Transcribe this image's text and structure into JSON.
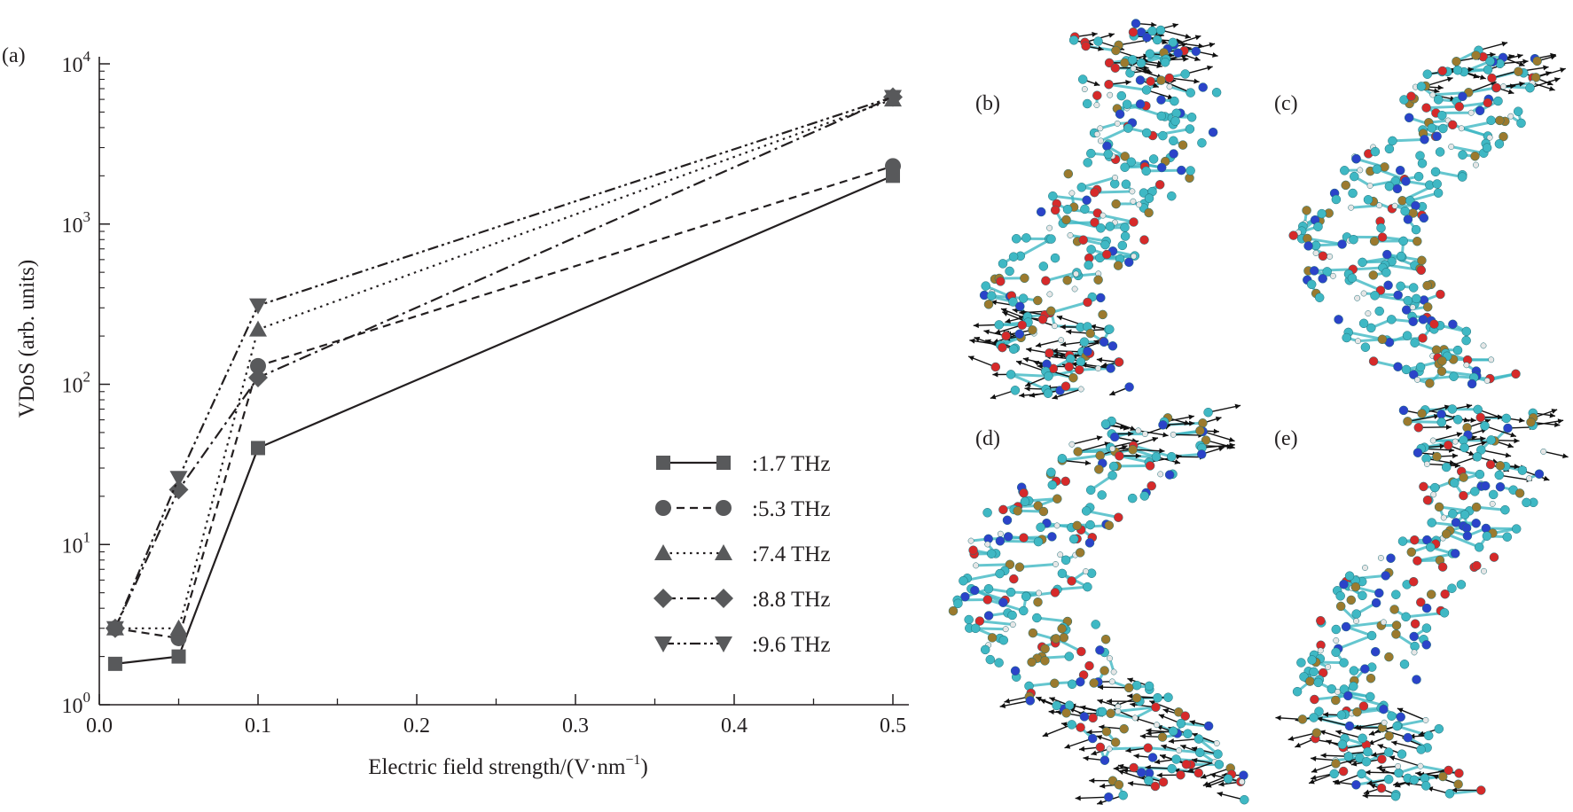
{
  "panel_labels": {
    "a": "(a)",
    "b": "(b)",
    "c": "(c)",
    "d": "(d)",
    "e": "(e)"
  },
  "chart_data": {
    "type": "line",
    "title": "",
    "xlabel": "Electric field strength/(V·nm",
    "xlabel_sup": "−1",
    "xlabel_end": ")",
    "ylabel": "VDoS (arb. units)",
    "x_scale": "linear-broken",
    "y_scale": "log",
    "xlim": [
      0.0,
      0.5
    ],
    "ylim": [
      1,
      10000
    ],
    "grid": false,
    "legend_position": "lower-right",
    "x_ticks": [
      "0.0",
      "0.1",
      "0.2",
      "0.3",
      "0.4",
      "0.5"
    ],
    "y_ticks": [
      {
        "base": "10",
        "exp": "0"
      },
      {
        "base": "10",
        "exp": "1"
      },
      {
        "base": "10",
        "exp": "2"
      },
      {
        "base": "10",
        "exp": "3"
      },
      {
        "base": "10",
        "exp": "4"
      }
    ],
    "x": [
      0.01,
      0.05,
      0.1,
      0.5
    ],
    "series": [
      {
        "name": ":1.7 THz",
        "marker": "square",
        "dash": "solid",
        "values": [
          1.8,
          2.0,
          40,
          2000
        ]
      },
      {
        "name": ":5.3 THz",
        "marker": "circle",
        "dash": "dashed",
        "values": [
          3.0,
          2.6,
          130,
          2300
        ]
      },
      {
        "name": ":7.4 THz",
        "marker": "triangle-up",
        "dash": "dotted",
        "values": [
          3.0,
          3.0,
          220,
          6000
        ]
      },
      {
        "name": ":8.8 THz",
        "marker": "diamond",
        "dash": "dash-dot",
        "values": [
          3.0,
          22,
          110,
          6200
        ]
      },
      {
        "name": ":9.6 THz",
        "marker": "triangle-down",
        "dash": "dash-dot-dot",
        "values": [
          3.0,
          26,
          310,
          6200
        ]
      }
    ],
    "colors": {
      "line": "#231f20",
      "marker": "#58595b"
    }
  },
  "molecule_colors": {
    "carbon": "#3fb8c4",
    "nitrogen": "#2b43c9",
    "oxygen": "#d62a2a",
    "phosphorus": "#9b7a2e",
    "hydrogen": "#e6e6e6",
    "arrow": "#111111"
  }
}
